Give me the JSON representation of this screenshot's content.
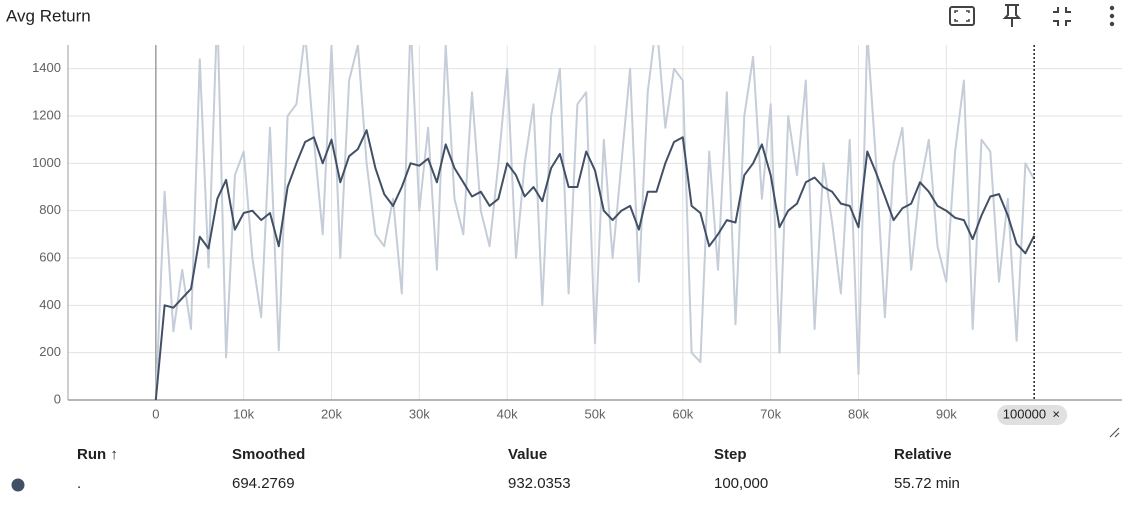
{
  "title": "Avg Return",
  "chart_data": {
    "type": "line",
    "x": [
      0,
      1000,
      2000,
      3000,
      4000,
      5000,
      6000,
      7000,
      8000,
      9000,
      10000,
      11000,
      12000,
      13000,
      14000,
      15000,
      16000,
      17000,
      18000,
      19000,
      20000,
      21000,
      22000,
      23000,
      24000,
      25000,
      26000,
      27000,
      28000,
      29000,
      30000,
      31000,
      32000,
      33000,
      34000,
      35000,
      36000,
      37000,
      38000,
      39000,
      40000,
      41000,
      42000,
      43000,
      44000,
      45000,
      46000,
      47000,
      48000,
      49000,
      50000,
      51000,
      52000,
      53000,
      54000,
      55000,
      56000,
      57000,
      58000,
      59000,
      60000,
      61000,
      62000,
      63000,
      64000,
      65000,
      66000,
      67000,
      68000,
      69000,
      70000,
      71000,
      72000,
      73000,
      74000,
      75000,
      76000,
      77000,
      78000,
      79000,
      80000,
      81000,
      82000,
      83000,
      84000,
      85000,
      86000,
      87000,
      88000,
      89000,
      90000,
      91000,
      92000,
      93000,
      94000,
      95000,
      96000,
      97000,
      98000,
      99000,
      100000
    ],
    "series": [
      {
        "color": "#c5cdd8",
        "values": [
          0,
          880,
          290,
          550,
          300,
          1440,
          560,
          1650,
          180,
          950,
          1050,
          600,
          350,
          1150,
          210,
          1200,
          1250,
          1550,
          1100,
          700,
          1500,
          600,
          1350,
          1500,
          1000,
          700,
          650,
          850,
          450,
          1600,
          800,
          1150,
          550,
          1500,
          850,
          700,
          1300,
          800,
          650,
          1000,
          1400,
          600,
          1000,
          1250,
          400,
          1200,
          1400,
          450,
          1250,
          1300,
          240,
          1100,
          600,
          1000,
          1400,
          500,
          1300,
          1600,
          1150,
          1400,
          1350,
          200,
          160,
          1050,
          550,
          1300,
          320,
          1200,
          1450,
          850,
          1250,
          200,
          1200,
          950,
          1350,
          300,
          1000,
          750,
          450,
          1100,
          110,
          1550,
          1000,
          350,
          1000,
          1150,
          550,
          900,
          1100,
          650,
          500,
          1050,
          1350,
          300,
          1100,
          1050,
          500,
          850,
          250,
          1000,
          932.0353
        ]
      },
      {
        "color": "#425066",
        "values": [
          0,
          400,
          390,
          430,
          470,
          690,
          640,
          850,
          930,
          720,
          790,
          800,
          760,
          790,
          650,
          900,
          1000,
          1090,
          1110,
          1000,
          1100,
          920,
          1030,
          1060,
          1140,
          980,
          870,
          820,
          900,
          1000,
          990,
          1020,
          920,
          1080,
          980,
          920,
          860,
          880,
          820,
          850,
          1000,
          950,
          860,
          900,
          840,
          980,
          1040,
          900,
          900,
          1050,
          970,
          800,
          760,
          800,
          820,
          720,
          880,
          880,
          1000,
          1090,
          1110,
          820,
          790,
          650,
          700,
          760,
          750,
          950,
          1000,
          1080,
          950,
          730,
          800,
          830,
          920,
          940,
          900,
          880,
          830,
          820,
          730,
          1050,
          960,
          860,
          760,
          810,
          830,
          920,
          880,
          820,
          800,
          770,
          760,
          680,
          780,
          860,
          870,
          780,
          660,
          620,
          694.2769
        ]
      }
    ],
    "xlim": [
      -10000,
      110000
    ],
    "ylim": [
      0,
      1500
    ],
    "xticks": [
      0,
      {
        "value": 10000,
        "label": "10k"
      },
      {
        "value": 20000,
        "label": "20k"
      },
      {
        "value": 30000,
        "label": "30k"
      },
      {
        "value": 40000,
        "label": "40k"
      },
      {
        "value": 50000,
        "label": "50k"
      },
      {
        "value": 60000,
        "label": "60k"
      },
      {
        "value": 70000,
        "label": "70k"
      },
      {
        "value": 80000,
        "label": "80k"
      },
      {
        "value": 90000,
        "label": "90k"
      }
    ],
    "yticks": [
      0,
      200,
      400,
      600,
      800,
      1000,
      1200,
      1400
    ],
    "grid": true,
    "cursor_step": 100000,
    "cursor_close": "×"
  },
  "table": {
    "columns": [
      "Run ↑",
      "Smoothed",
      "Value",
      "Step",
      "Relative"
    ],
    "rows": [
      [
        ".",
        "694.2769",
        "932.0353",
        "100,000",
        "55.72 min"
      ]
    ]
  }
}
